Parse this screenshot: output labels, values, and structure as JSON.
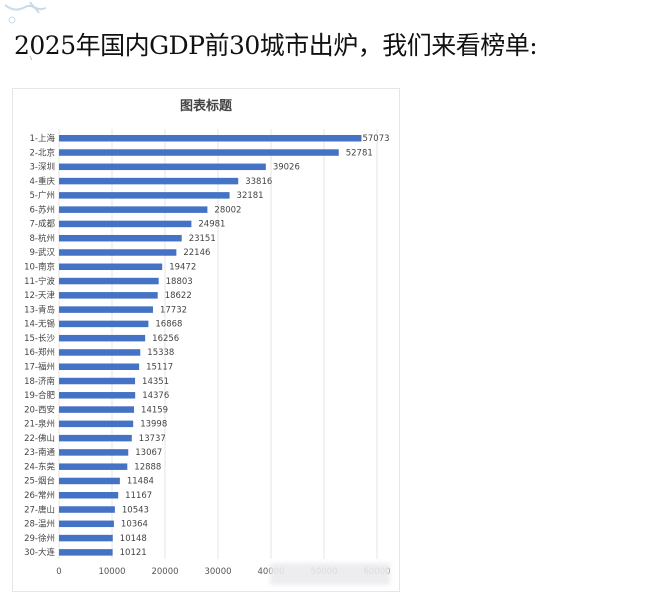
{
  "headline": "2025年国内GDP前30城市出炉，我们来看榜单:",
  "chart_data": {
    "type": "bar",
    "orientation": "horizontal",
    "title": "图表标题",
    "categories": [
      "1-上海",
      "2-北京",
      "3-深圳",
      "4-重庆",
      "5-广州",
      "6-苏州",
      "7-成都",
      "8-杭州",
      "9-武汉",
      "10-南京",
      "11-宁波",
      "12-天津",
      "13-青岛",
      "14-无锡",
      "15-长沙",
      "16-郑州",
      "17-福州",
      "18-济南",
      "19-合肥",
      "20-西安",
      "21-泉州",
      "22-佛山",
      "23-南通",
      "24-东莞",
      "25-烟台",
      "26-常州",
      "27-唐山",
      "28-温州",
      "29-徐州",
      "30-大连"
    ],
    "values": [
      57073,
      52781,
      39026,
      33816,
      32181,
      28002,
      24981,
      23151,
      22146,
      19472,
      18803,
      18622,
      17732,
      16868,
      16256,
      15338,
      15117,
      14351,
      14376,
      14159,
      13998,
      13737,
      13067,
      12888,
      11484,
      11167,
      10543,
      10364,
      10148,
      10121
    ],
    "xlim": [
      0,
      60000
    ],
    "xticks": [
      "0",
      "10000",
      "20000",
      "30000",
      "40000",
      "50000",
      "60000"
    ],
    "grid": "vertical",
    "bar_color": "#4472c4",
    "data_labels": true
  }
}
